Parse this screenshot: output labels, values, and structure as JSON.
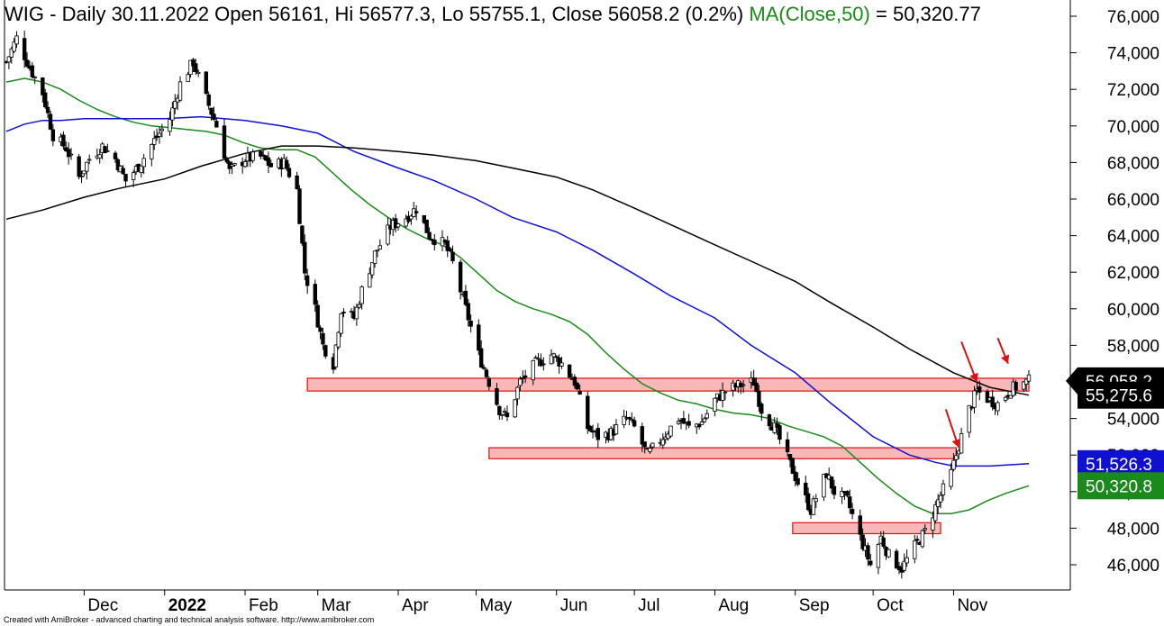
{
  "header": {
    "symbol": "WIG",
    "info": "- Daily 30.11.2022 Open 56161, Hi 56577.3, Lo 55755.1, Close 56058.2 (0.2%)",
    "ma_label": "MA(Close,50)",
    "ma_value": "= 50,320.77"
  },
  "footer": {
    "credit": "Created with AmiBroker - advanced charting and technical analysis software. http://www.amibroker.com"
  },
  "colors": {
    "candle": "#000000",
    "ma50": "#1a8a1a",
    "ma100": "#1010d0",
    "ma200": "#000000",
    "zone_fill": "#f8b8b8",
    "zone_stroke": "#e01010",
    "arrow": "#e01010",
    "badge_close": "#000000",
    "badge_ma200": "#000000",
    "badge_ma100": "#1010d0",
    "badge_ma50": "#1a8a1a"
  },
  "chart_data": {
    "type": "candlestick",
    "title": "WIG - Daily 30.11.2022 Open 56161, Hi 56577.3, Lo 55755.1, Close 56058.2 (0.2%)",
    "ylim": [
      45000,
      76500
    ],
    "y_ticks": [
      46000,
      48000,
      50000,
      52000,
      54000,
      56000,
      58000,
      60000,
      62000,
      64000,
      66000,
      68000,
      70000,
      72000,
      74000,
      76000
    ],
    "y_tick_labels": [
      "46,000",
      "48,000",
      "50,000",
      "52,000",
      "54,000",
      "56,000",
      "58,000",
      "60,000",
      "62,000",
      "64,000",
      "66,000",
      "68,000",
      "70,000",
      "72,000",
      "74,000",
      "76,000"
    ],
    "x_range": [
      "2021-11-01",
      "2022-11-30"
    ],
    "x_ticks": [
      {
        "date": "2021-12-01",
        "label": "Dec",
        "bold": false
      },
      {
        "date": "2022-01-01",
        "label": "2022",
        "bold": true
      },
      {
        "date": "2022-02-01",
        "label": "Feb",
        "bold": false
      },
      {
        "date": "2022-03-01",
        "label": "Mar",
        "bold": false
      },
      {
        "date": "2022-04-01",
        "label": "Apr",
        "bold": false
      },
      {
        "date": "2022-05-01",
        "label": "May",
        "bold": false
      },
      {
        "date": "2022-06-01",
        "label": "Jun",
        "bold": false
      },
      {
        "date": "2022-07-01",
        "label": "Jul",
        "bold": false
      },
      {
        "date": "2022-08-01",
        "label": "Aug",
        "bold": false
      },
      {
        "date": "2022-09-01",
        "label": "Sep",
        "bold": false
      },
      {
        "date": "2022-10-01",
        "label": "Oct",
        "bold": false
      },
      {
        "date": "2022-11-01",
        "label": "Nov",
        "bold": false
      }
    ],
    "close_path": [
      [
        "2021-11-01",
        73500
      ],
      [
        "2021-11-05",
        74800
      ],
      [
        "2021-11-10",
        73200
      ],
      [
        "2021-11-15",
        71800
      ],
      [
        "2021-11-19",
        69500
      ],
      [
        "2021-11-24",
        68800
      ],
      [
        "2021-11-29",
        67200
      ],
      [
        "2021-12-03",
        68200
      ],
      [
        "2021-12-08",
        68900
      ],
      [
        "2021-12-13",
        68200
      ],
      [
        "2021-12-17",
        67000
      ],
      [
        "2021-12-22",
        67800
      ],
      [
        "2021-12-28",
        69200
      ],
      [
        "2022-01-03",
        70400
      ],
      [
        "2022-01-07",
        72300
      ],
      [
        "2022-01-12",
        73500
      ],
      [
        "2022-01-17",
        71500
      ],
      [
        "2022-01-21",
        70000
      ],
      [
        "2022-01-26",
        67500
      ],
      [
        "2022-02-01",
        68200
      ],
      [
        "2022-02-07",
        68300
      ],
      [
        "2022-02-11",
        67800
      ],
      [
        "2022-02-16",
        68000
      ],
      [
        "2022-02-21",
        66500
      ],
      [
        "2022-02-24",
        62000
      ],
      [
        "2022-02-28",
        60000
      ],
      [
        "2022-03-03",
        58000
      ],
      [
        "2022-03-07",
        57000
      ],
      [
        "2022-03-10",
        60000
      ],
      [
        "2022-03-15",
        59500
      ],
      [
        "2022-03-18",
        61000
      ],
      [
        "2022-03-23",
        63000
      ],
      [
        "2022-03-29",
        64500
      ],
      [
        "2022-04-04",
        65000
      ],
      [
        "2022-04-08",
        65500
      ],
      [
        "2022-04-13",
        64000
      ],
      [
        "2022-04-19",
        63500
      ],
      [
        "2022-04-22",
        62500
      ],
      [
        "2022-04-27",
        60000
      ],
      [
        "2022-05-02",
        57500
      ],
      [
        "2022-05-06",
        56000
      ],
      [
        "2022-05-10",
        54500
      ],
      [
        "2022-05-13",
        54000
      ],
      [
        "2022-05-18",
        56000
      ],
      [
        "2022-05-24",
        57000
      ],
      [
        "2022-05-30",
        57500
      ],
      [
        "2022-06-03",
        57000
      ],
      [
        "2022-06-08",
        56000
      ],
      [
        "2022-06-13",
        53500
      ],
      [
        "2022-06-17",
        53000
      ],
      [
        "2022-06-22",
        53200
      ],
      [
        "2022-06-28",
        54000
      ],
      [
        "2022-07-01",
        53500
      ],
      [
        "2022-07-06",
        52000
      ],
      [
        "2022-07-12",
        53000
      ],
      [
        "2022-07-18",
        54000
      ],
      [
        "2022-07-22",
        53500
      ],
      [
        "2022-07-27",
        53800
      ],
      [
        "2022-08-01",
        55000
      ],
      [
        "2022-08-05",
        55500
      ],
      [
        "2022-08-10",
        55800
      ],
      [
        "2022-08-16",
        56000
      ],
      [
        "2022-08-19",
        54500
      ],
      [
        "2022-08-24",
        53500
      ],
      [
        "2022-08-30",
        51500
      ],
      [
        "2022-09-02",
        50500
      ],
      [
        "2022-09-07",
        49000
      ],
      [
        "2022-09-13",
        51000
      ],
      [
        "2022-09-16",
        50000
      ],
      [
        "2022-09-21",
        49500
      ],
      [
        "2022-09-26",
        47500
      ],
      [
        "2022-09-30",
        46000
      ],
      [
        "2022-10-04",
        47500
      ],
      [
        "2022-10-07",
        46500
      ],
      [
        "2022-10-12",
        45800
      ],
      [
        "2022-10-17",
        47000
      ],
      [
        "2022-10-21",
        47800
      ],
      [
        "2022-10-26",
        49500
      ],
      [
        "2022-10-31",
        51000
      ],
      [
        "2022-11-03",
        52500
      ],
      [
        "2022-11-07",
        54500
      ],
      [
        "2022-11-10",
        55500
      ],
      [
        "2022-11-15",
        55000
      ],
      [
        "2022-11-18",
        54800
      ],
      [
        "2022-11-23",
        55600
      ],
      [
        "2022-11-30",
        56058
      ]
    ],
    "series": [
      {
        "name": "MA(Close,50)",
        "color": "#1a8a1a",
        "points": [
          [
            "2021-11-01",
            72400
          ],
          [
            "2021-11-08",
            72600
          ],
          [
            "2021-11-15",
            72400
          ],
          [
            "2021-11-22",
            72000
          ],
          [
            "2021-11-29",
            71400
          ],
          [
            "2021-12-06",
            70900
          ],
          [
            "2021-12-13",
            70500
          ],
          [
            "2021-12-20",
            70200
          ],
          [
            "2021-12-27",
            70000
          ],
          [
            "2022-01-03",
            69900
          ],
          [
            "2022-01-10",
            69800
          ],
          [
            "2022-01-17",
            69700
          ],
          [
            "2022-01-24",
            69500
          ],
          [
            "2022-01-31",
            69100
          ],
          [
            "2022-02-07",
            68800
          ],
          [
            "2022-02-14",
            68700
          ],
          [
            "2022-02-21",
            68700
          ],
          [
            "2022-02-28",
            68300
          ],
          [
            "2022-03-07",
            67400
          ],
          [
            "2022-03-14",
            66500
          ],
          [
            "2022-03-21",
            65700
          ],
          [
            "2022-03-28",
            65000
          ],
          [
            "2022-04-04",
            64400
          ],
          [
            "2022-04-11",
            63900
          ],
          [
            "2022-04-18",
            63500
          ],
          [
            "2022-04-25",
            62800
          ],
          [
            "2022-05-02",
            61900
          ],
          [
            "2022-05-09",
            61000
          ],
          [
            "2022-05-16",
            60400
          ],
          [
            "2022-05-23",
            60000
          ],
          [
            "2022-05-30",
            59700
          ],
          [
            "2022-06-06",
            59300
          ],
          [
            "2022-06-13",
            58600
          ],
          [
            "2022-06-20",
            57600
          ],
          [
            "2022-06-27",
            56700
          ],
          [
            "2022-07-04",
            55900
          ],
          [
            "2022-07-11",
            55400
          ],
          [
            "2022-07-18",
            55000
          ],
          [
            "2022-07-25",
            54800
          ],
          [
            "2022-08-01",
            54500
          ],
          [
            "2022-08-08",
            54300
          ],
          [
            "2022-08-15",
            54200
          ],
          [
            "2022-08-22",
            54000
          ],
          [
            "2022-08-29",
            53600
          ],
          [
            "2022-09-05",
            53300
          ],
          [
            "2022-09-12",
            53000
          ],
          [
            "2022-09-19",
            52500
          ],
          [
            "2022-09-26",
            51600
          ],
          [
            "2022-10-03",
            50700
          ],
          [
            "2022-10-10",
            49900
          ],
          [
            "2022-10-17",
            49200
          ],
          [
            "2022-10-24",
            48800
          ],
          [
            "2022-10-31",
            48800
          ],
          [
            "2022-11-07",
            49000
          ],
          [
            "2022-11-14",
            49500
          ],
          [
            "2022-11-21",
            49900
          ],
          [
            "2022-11-30",
            50321
          ]
        ]
      },
      {
        "name": "MA(Close,100)",
        "color": "#1010d0",
        "points": [
          [
            "2021-11-01",
            69700
          ],
          [
            "2021-11-08",
            70100
          ],
          [
            "2021-11-15",
            70300
          ],
          [
            "2021-11-22",
            70300
          ],
          [
            "2021-12-01",
            70400
          ],
          [
            "2021-12-15",
            70400
          ],
          [
            "2022-01-01",
            70400
          ],
          [
            "2022-01-15",
            70500
          ],
          [
            "2022-02-01",
            70300
          ],
          [
            "2022-02-15",
            70000
          ],
          [
            "2022-03-01",
            69600
          ],
          [
            "2022-03-15",
            68600
          ],
          [
            "2022-04-01",
            67700
          ],
          [
            "2022-04-15",
            67000
          ],
          [
            "2022-05-01",
            66000
          ],
          [
            "2022-05-15",
            65000
          ],
          [
            "2022-06-01",
            64200
          ],
          [
            "2022-06-15",
            63200
          ],
          [
            "2022-07-01",
            61900
          ],
          [
            "2022-07-15",
            60700
          ],
          [
            "2022-08-01",
            59500
          ],
          [
            "2022-08-15",
            58000
          ],
          [
            "2022-09-01",
            56500
          ],
          [
            "2022-09-15",
            54800
          ],
          [
            "2022-10-01",
            53000
          ],
          [
            "2022-10-15",
            52000
          ],
          [
            "2022-10-25",
            51600
          ],
          [
            "2022-11-01",
            51400
          ],
          [
            "2022-11-15",
            51400
          ],
          [
            "2022-11-30",
            51526
          ]
        ]
      },
      {
        "name": "MA(Close,200)",
        "color": "#000000",
        "points": [
          [
            "2021-11-01",
            64900
          ],
          [
            "2021-11-15",
            65400
          ],
          [
            "2021-12-01",
            66100
          ],
          [
            "2021-12-15",
            66600
          ],
          [
            "2022-01-01",
            67100
          ],
          [
            "2022-01-15",
            67800
          ],
          [
            "2022-02-01",
            68500
          ],
          [
            "2022-02-15",
            68900
          ],
          [
            "2022-03-01",
            68900
          ],
          [
            "2022-03-15",
            68800
          ],
          [
            "2022-04-01",
            68600
          ],
          [
            "2022-04-15",
            68400
          ],
          [
            "2022-05-01",
            68100
          ],
          [
            "2022-05-15",
            67700
          ],
          [
            "2022-06-01",
            67200
          ],
          [
            "2022-06-15",
            66500
          ],
          [
            "2022-07-01",
            65500
          ],
          [
            "2022-07-15",
            64600
          ],
          [
            "2022-08-01",
            63500
          ],
          [
            "2022-08-15",
            62600
          ],
          [
            "2022-09-01",
            61500
          ],
          [
            "2022-09-15",
            60300
          ],
          [
            "2022-10-01",
            59000
          ],
          [
            "2022-10-15",
            57800
          ],
          [
            "2022-11-01",
            56500
          ],
          [
            "2022-11-15",
            55700
          ],
          [
            "2022-11-30",
            55276
          ]
        ]
      }
    ],
    "zones": [
      {
        "from": "2022-02-25",
        "to": "2022-11-30",
        "low": 55500,
        "high": 56200
      },
      {
        "from": "2022-05-06",
        "to": "2022-11-02",
        "low": 51800,
        "high": 52400
      },
      {
        "from": "2022-08-31",
        "to": "2022-10-27",
        "low": 47700,
        "high": 48300
      }
    ],
    "arrows": [
      {
        "from_date": "2022-10-29",
        "from_value": 54500,
        "to_date": "2022-11-03",
        "to_value": 52400
      },
      {
        "from_date": "2022-11-04",
        "from_value": 58200,
        "to_date": "2022-11-10",
        "to_value": 56000
      },
      {
        "from_date": "2022-11-18",
        "from_value": 58400,
        "to_date": "2022-11-22",
        "to_value": 57000
      }
    ],
    "value_badges": [
      {
        "name": "Close",
        "value": 56058.2,
        "text": "56,058.2",
        "color": "#000000",
        "pointer": true
      },
      {
        "name": "MA(Close,200)",
        "value": 55275.6,
        "text": "55,275.6",
        "color": "#000000",
        "pointer": false
      },
      {
        "name": "MA(Close,100)",
        "value": 51526.3,
        "text": "51,526.3",
        "color": "#1010d0",
        "pointer": false
      },
      {
        "name": "MA(Close,50)",
        "value": 50320.8,
        "text": "50,320.8",
        "color": "#1a8a1a",
        "pointer": false
      }
    ]
  }
}
